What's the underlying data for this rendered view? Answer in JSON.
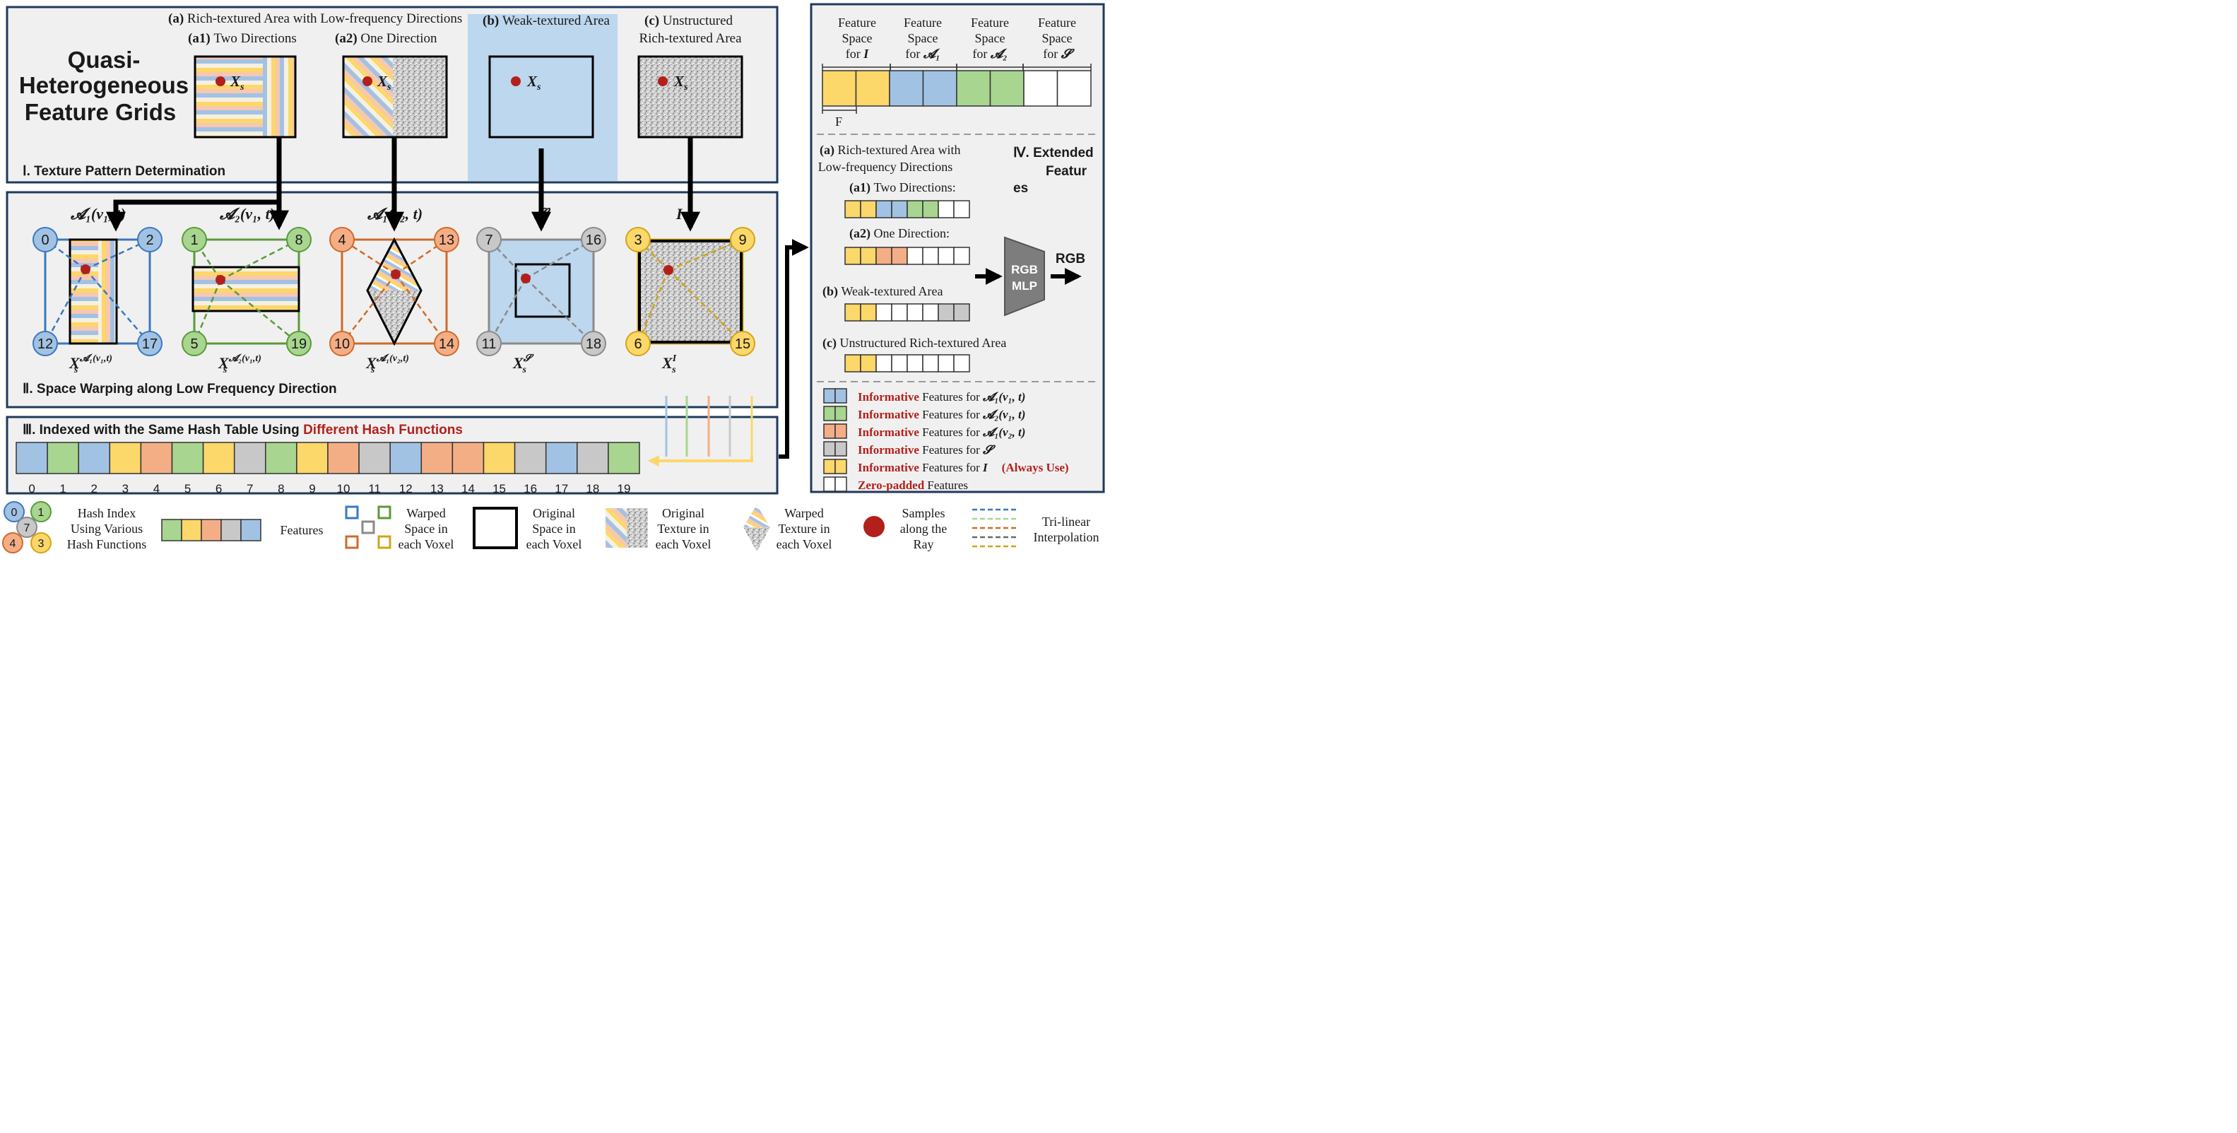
{
  "colors": {
    "yellow": "#fcd76a",
    "blue": "#a2c2e4",
    "green": "#a8d58f",
    "orange": "#f4ae86",
    "gray": "#c8c8c8",
    "panel_bg": "#f0f0f0",
    "panel_border": "#1f3a5c",
    "accent_red": "#b3201c",
    "weak_area_bg": "#bcd7ee"
  },
  "title": {
    "line1": "Quasi-",
    "line2": "Heterogeneous",
    "line3": "Feature Grids"
  },
  "section1": {
    "label": "Ⅰ. Texture Pattern Determination",
    "group_a_letter": "(a)",
    "group_a_text": "Rich-textured Area with Low-frequency Directions",
    "a1_letter": "(a1)",
    "a1_text": "Two Directions",
    "a2_letter": "(a2)",
    "a2_text": "One Direction",
    "b_letter": "(b)",
    "b_text": "Weak-textured Area",
    "c_letter": "(c)",
    "c_text_line1": "Unstructured",
    "c_text_line2": "Rich-textured Area",
    "sample_label": "X",
    "sample_sub": "s"
  },
  "section2": {
    "label": "Ⅱ. Space Warping along Low Frequency Direction",
    "panels": [
      {
        "top_label": "𝓐₁(v₁, t)",
        "bottom_label": "X",
        "bottom_sup": "𝓐₁(v₁,t)",
        "corners": [
          "0",
          "2",
          "12",
          "17"
        ]
      },
      {
        "top_label": "𝓐₂(v₁, t)",
        "bottom_label": "X",
        "bottom_sup": "𝓐₂(v₁,t)",
        "corners": [
          "1",
          "8",
          "5",
          "19"
        ]
      },
      {
        "top_label": "𝓐₁(v₂, t)",
        "bottom_label": "X",
        "bottom_sup": "𝓐₁(v₂,t)",
        "corners": [
          "4",
          "13",
          "10",
          "14"
        ]
      },
      {
        "top_label": "𝓢",
        "bottom_label": "X",
        "bottom_sup": "𝓢",
        "corners": [
          "7",
          "16",
          "11",
          "18"
        ]
      },
      {
        "top_label": "I",
        "bottom_label": "X",
        "bottom_sup": "I",
        "corners": [
          "3",
          "9",
          "6",
          "15"
        ]
      }
    ],
    "sub_s": "s"
  },
  "section3": {
    "label_prefix": "Ⅲ. Indexed with the Same Hash Table Using ",
    "label_red": "Different Hash Functions",
    "hash_table": [
      "blue",
      "green",
      "blue",
      "yellow",
      "orange",
      "green",
      "yellow",
      "gray",
      "green",
      "yellow",
      "orange",
      "gray",
      "blue",
      "orange",
      "orange",
      "yellow",
      "gray",
      "blue",
      "gray",
      "green"
    ],
    "indices": [
      "0",
      "1",
      "2",
      "3",
      "4",
      "5",
      "6",
      "7",
      "8",
      "9",
      "10",
      "11",
      "12",
      "13",
      "14",
      "15",
      "16",
      "17",
      "18",
      "19"
    ]
  },
  "section4": {
    "feature_spaces": [
      {
        "line1": "Feature",
        "line2": "Space",
        "line3": "for ",
        "sym": "I"
      },
      {
        "line1": "Feature",
        "line2": "Space",
        "line3": "for ",
        "sym": "𝓐₁"
      },
      {
        "line1": "Feature",
        "line2": "Space",
        "line3": "for ",
        "sym": "𝓐₂"
      },
      {
        "line1": "Feature",
        "line2": "Space",
        "line3": "for ",
        "sym": "𝓢"
      }
    ],
    "f_label": "F",
    "title_line1": "Ⅳ. Extended",
    "title_line2": "Featur",
    "title_line3": "es",
    "a_letter": "(a)",
    "a_text_line1": "Rich-textured Area with",
    "a_text_line2": "Low-frequency Directions",
    "a1_letter": "(a1)",
    "a1_text": "Two Directions:",
    "a2_letter": "(a2)",
    "a2_text": "One Direction:",
    "b_letter": "(b)",
    "b_text": "Weak-textured Area",
    "c_letter": "(c)",
    "c_text": "Unstructured Rich-textured Area",
    "vectors": {
      "a1": [
        "yellow",
        "yellow",
        "blue",
        "blue",
        "green",
        "green",
        "white",
        "white"
      ],
      "a2": [
        "yellow",
        "yellow",
        "orange",
        "orange",
        "white",
        "white",
        "white",
        "white"
      ],
      "b": [
        "yellow",
        "yellow",
        "white",
        "white",
        "white",
        "white",
        "gray",
        "gray"
      ],
      "c": [
        "yellow",
        "yellow",
        "white",
        "white",
        "white",
        "white",
        "white",
        "white"
      ]
    },
    "mlp_line1": "RGB",
    "mlp_line2": "MLP",
    "rgb_out": "RGB",
    "legend": [
      {
        "color": "blue",
        "bold": "Informative",
        "rest": " Features for ",
        "sym": "𝓐₁(v₁, t)",
        "extra": ""
      },
      {
        "color": "green",
        "bold": "Informative",
        "rest": " Features for ",
        "sym": "𝓐₂(v₁, t)",
        "extra": ""
      },
      {
        "color": "orange",
        "bold": "Informative",
        "rest": " Features for ",
        "sym": "𝓐₁(v₂, t)",
        "extra": ""
      },
      {
        "color": "gray",
        "bold": "Informative",
        "rest": " Features for ",
        "sym": "𝓢",
        "extra": ""
      },
      {
        "color": "yellow",
        "bold": "Informative",
        "rest": " Features for ",
        "sym": "I",
        "extra": "(Always Use)"
      },
      {
        "color": "white",
        "bold": "Zero-padded",
        "rest": " Features",
        "sym": "",
        "extra": ""
      }
    ]
  },
  "bottom_legend": {
    "hash_nodes": [
      "0",
      "1",
      "7",
      "4",
      "3"
    ],
    "hash_text": [
      "Hash Index",
      "Using Various",
      "Hash Functions"
    ],
    "features_text": "Features",
    "features_colors": [
      "green",
      "yellow",
      "orange",
      "gray",
      "blue"
    ],
    "warped_space_text": [
      "Warped",
      "Space in",
      "each Voxel"
    ],
    "original_space_text": [
      "Original",
      "Space in",
      "each Voxel"
    ],
    "original_texture_text": [
      "Original",
      "Texture in",
      "each Voxel"
    ],
    "warped_texture_text": [
      "Warped",
      "Texture in",
      "each Voxel"
    ],
    "samples_text": [
      "Samples",
      "along the",
      "Ray"
    ],
    "trilinear_text": [
      "Tri-linear",
      "Interpolation"
    ]
  }
}
